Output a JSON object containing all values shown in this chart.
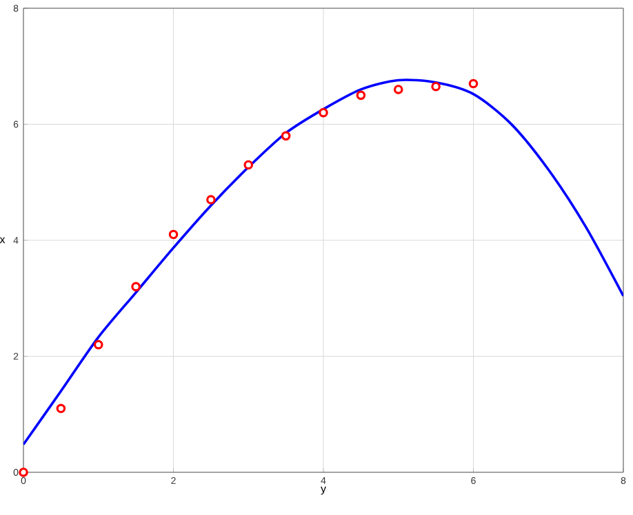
{
  "chart_data": {
    "type": "scatter",
    "xlabel": "y",
    "ylabel": "x",
    "xlim": [
      0,
      8
    ],
    "ylim": [
      0,
      8
    ],
    "xticks": [
      0,
      2,
      4,
      6,
      8
    ],
    "yticks": [
      0,
      2,
      4,
      6,
      8
    ],
    "grid": true,
    "series": [
      {
        "color": "#ff0000",
        "marker": "circle",
        "x": [
          0,
          0.5,
          1,
          1.5,
          2,
          2.5,
          3,
          3.5,
          4,
          4.5,
          5,
          5.5,
          6
        ],
        "values": [
          0,
          1.1,
          2.2,
          3.2,
          4.1,
          4.7,
          5.3,
          5.8,
          6.2,
          6.5,
          6.6,
          6.65,
          6.7
        ]
      },
      {
        "type": "line",
        "color": "#0000ff",
        "marker": "none",
        "line_style": "solid",
        "x": [
          0,
          0.5,
          1,
          1.5,
          2,
          2.5,
          3,
          3.5,
          4,
          4.5,
          5,
          5.5,
          6,
          6.5,
          7,
          7.5,
          8
        ],
        "values": [
          0.48,
          1.4,
          2.33,
          3.1,
          3.87,
          4.6,
          5.26,
          5.85,
          6.26,
          6.6,
          6.76,
          6.72,
          6.52,
          6.01,
          5.22,
          4.23,
          3.04
        ]
      }
    ]
  }
}
